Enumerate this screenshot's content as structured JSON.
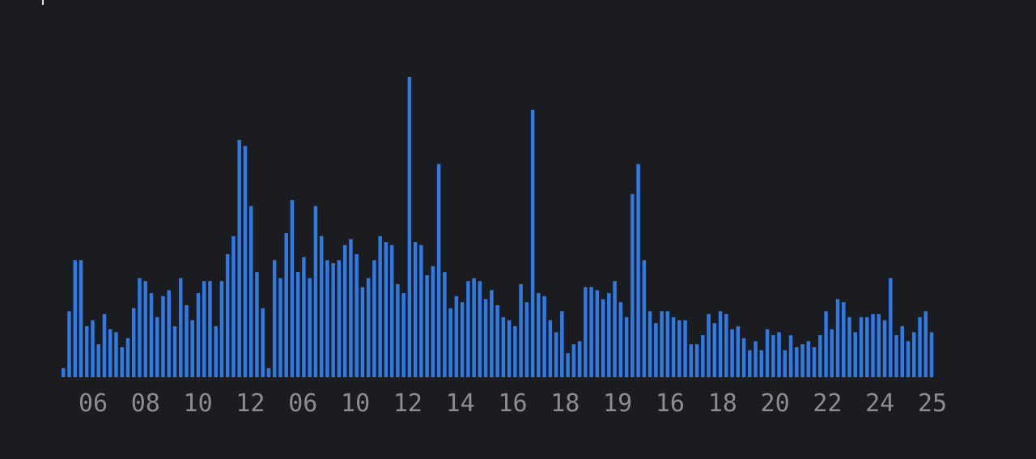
{
  "chart_data": {
    "type": "bar",
    "title": "",
    "xlabel": "",
    "ylabel": "",
    "bar_color": "#2f7ae5",
    "tick_color": "#8b8d93",
    "background": "#1b1c20",
    "ylim": [
      0,
      100
    ],
    "x_tick_labels": [
      "06",
      "08",
      "10",
      "12",
      "06",
      "10",
      "12",
      "14",
      "16",
      "18",
      "19",
      "16",
      "18",
      "20",
      "22",
      "24",
      "25"
    ],
    "values": [
      3,
      22,
      39,
      39,
      17,
      19,
      11,
      21,
      16,
      15,
      10,
      13,
      23,
      33,
      32,
      28,
      20,
      27,
      29,
      17,
      33,
      24,
      19,
      28,
      32,
      32,
      17,
      32,
      41,
      47,
      79,
      77,
      57,
      35,
      23,
      3,
      39,
      33,
      48,
      59,
      35,
      40,
      33,
      57,
      47,
      39,
      38,
      39,
      44,
      46,
      41,
      30,
      33,
      39,
      47,
      45,
      44,
      31,
      28,
      100,
      45,
      44,
      34,
      37,
      71,
      35,
      23,
      27,
      25,
      32,
      33,
      32,
      26,
      29,
      24,
      20,
      19,
      17,
      31,
      25,
      89,
      28,
      27,
      19,
      15,
      22,
      8,
      11,
      12,
      30,
      30,
      29,
      26,
      28,
      32,
      25,
      20,
      61,
      71,
      39,
      22,
      18,
      22,
      22,
      20,
      19,
      19,
      11,
      11,
      14,
      21,
      18,
      22,
      21,
      16,
      17,
      13,
      9,
      12,
      9,
      16,
      14,
      15,
      9,
      14,
      10,
      11,
      12,
      10,
      14,
      22,
      16,
      26,
      25,
      20,
      15,
      20,
      20,
      21,
      21,
      19,
      33,
      14,
      17,
      12,
      15,
      20,
      22,
      15
    ]
  }
}
